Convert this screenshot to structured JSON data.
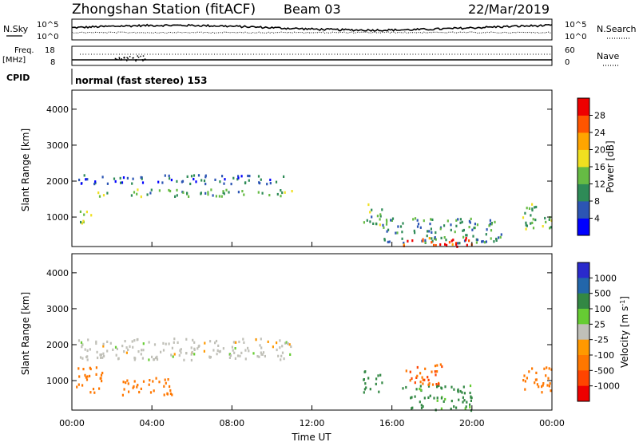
{
  "header": {
    "station": "Zhongshan Station (fitACF)",
    "beam": "Beam 03",
    "date": "22/Mar/2019"
  },
  "top_panels": {
    "nsky_label": "N.Sky",
    "nsky_ticks": [
      "10^5",
      "10^0"
    ],
    "nsearch_label": "N.Search",
    "nsearch_ticks": [
      "10^5",
      "10^0"
    ],
    "freq_label_top": "Freq.",
    "freq_label_unit": "[MHz]",
    "freq_ticks": [
      "18",
      "8"
    ],
    "nave_label": "Nave",
    "nave_ticks": [
      "60",
      "0"
    ],
    "cpid_label": "CPID",
    "cpid_text": "normal (fast stereo) 153"
  },
  "colors": {
    "power": [
      "#0000ff",
      "#2c55b4",
      "#2e8b57",
      "#66bb44",
      "#f0e020",
      "#ffa500",
      "#ff5500",
      "#ee0000"
    ],
    "velocity": [
      "#2a2acc",
      "#2266aa",
      "#338844",
      "#66cc33",
      "#c0c0b8",
      "#ff9900",
      "#ff7700",
      "#ff4400",
      "#ee0000"
    ]
  },
  "chart_data": [
    {
      "type": "heatmap",
      "name": "power",
      "ylabel": "Slant Range [km]",
      "yticks": [
        "1000",
        "2000",
        "3000",
        "4000"
      ],
      "ylim": [
        180,
        4530
      ],
      "xlim": [
        0,
        24
      ],
      "colorbar_label": "Power [dB]",
      "colorbar_ticks": [
        "4",
        "8",
        "12",
        "16",
        "20",
        "24",
        "28"
      ],
      "colorbar_range": [
        0,
        32
      ],
      "blobs": [
        {
          "t0": 0.3,
          "t1": 11.0,
          "r0": 1950,
          "r1": 2200,
          "v": 7
        },
        {
          "t0": 1.2,
          "t1": 11.0,
          "r0": 1600,
          "r1": 1800,
          "v": 12
        },
        {
          "t0": 0.2,
          "t1": 1.0,
          "r0": 850,
          "r1": 1250,
          "v": 14
        },
        {
          "t0": 14.5,
          "t1": 15.5,
          "r0": 800,
          "r1": 1400,
          "v": 12
        },
        {
          "t0": 15.5,
          "t1": 21.5,
          "r0": 300,
          "r1": 1000,
          "v": 10
        },
        {
          "t0": 16.5,
          "t1": 20.0,
          "r0": 180,
          "r1": 450,
          "v": 28
        },
        {
          "t0": 22.5,
          "t1": 24.0,
          "r0": 700,
          "r1": 1400,
          "v": 13
        }
      ]
    },
    {
      "type": "heatmap",
      "name": "velocity",
      "ylabel": "Slant Range [km]",
      "yticks": [
        "1000",
        "2000",
        "3000",
        "4000"
      ],
      "ylim": [
        180,
        4530
      ],
      "xlim": [
        0,
        24
      ],
      "xticks": [
        "00:00",
        "04:00",
        "08:00",
        "12:00",
        "16:00",
        "20:00",
        "00:00"
      ],
      "xlabel": "Time UT",
      "colorbar_label": "Velocity [m s^-1]",
      "colorbar_ticks": [
        "1000",
        "500",
        "100",
        "25",
        "-25",
        "-100",
        "-500",
        "-1000"
      ],
      "blobs": [
        {
          "t0": 0.3,
          "t1": 11.0,
          "r0": 1600,
          "r1": 2200,
          "v": 0
        },
        {
          "t0": 0.2,
          "t1": 1.5,
          "r0": 700,
          "r1": 1400,
          "v": -150
        },
        {
          "t0": 2.5,
          "t1": 5.0,
          "r0": 600,
          "r1": 1100,
          "v": -150
        },
        {
          "t0": 14.5,
          "t1": 15.5,
          "r0": 700,
          "r1": 1300,
          "v": 200
        },
        {
          "t0": 16.5,
          "t1": 20.0,
          "r0": 200,
          "r1": 900,
          "v": 80
        },
        {
          "t0": 16.5,
          "t1": 18.5,
          "r0": 900,
          "r1": 1500,
          "v": -300
        },
        {
          "t0": 22.5,
          "t1": 24.0,
          "r0": 700,
          "r1": 1400,
          "v": -150
        }
      ]
    }
  ]
}
